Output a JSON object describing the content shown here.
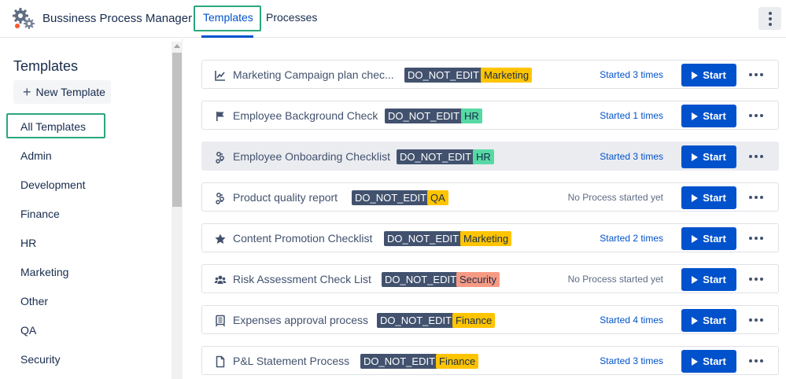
{
  "header": {
    "app_title": "Bussiness Process Manager",
    "tabs": [
      {
        "label": "Templates",
        "active": true
      },
      {
        "label": "Processes",
        "active": false
      }
    ],
    "menu_icon": "vertical-dots-icon",
    "logo_icon": "gears-icon"
  },
  "sidebar": {
    "title": "Templates",
    "new_button_label": "New Template",
    "items": [
      {
        "label": "All Templates",
        "selected": true
      },
      {
        "label": "Admin"
      },
      {
        "label": "Development"
      },
      {
        "label": "Finance"
      },
      {
        "label": "HR"
      },
      {
        "label": "Marketing"
      },
      {
        "label": "Other"
      },
      {
        "label": "QA"
      },
      {
        "label": "Security"
      }
    ]
  },
  "templates": [
    {
      "icon": "chart-line-icon",
      "name": "Marketing Campaign plan chec...",
      "tags": [
        "DO_NOT_EDIT",
        "Marketing"
      ],
      "status": "Started 3 times",
      "start_label": "Start"
    },
    {
      "icon": "flag-icon",
      "name": "Employee Background Check",
      "tags": [
        "DO_NOT_EDIT",
        "HR"
      ],
      "status": "Started 1 times",
      "start_label": "Start"
    },
    {
      "icon": "process-icon",
      "name": "Employee Onboarding Checklist",
      "tags": [
        "DO_NOT_EDIT",
        "HR"
      ],
      "status": "Started 3 times",
      "start_label": "Start"
    },
    {
      "icon": "process-icon",
      "name": "Product quality report",
      "tags": [
        "DO_NOT_EDIT",
        "QA"
      ],
      "status": "No Process started yet",
      "start_label": "Start"
    },
    {
      "icon": "star-icon",
      "name": "Content Promotion Checklist",
      "tags": [
        "DO_NOT_EDIT",
        "Marketing"
      ],
      "status": "Started 2 times",
      "start_label": "Start"
    },
    {
      "icon": "users-icon",
      "name": "Risk Assessment Check List",
      "tags": [
        "DO_NOT_EDIT",
        "Security"
      ],
      "status": "No Process started yet",
      "start_label": "Start"
    },
    {
      "icon": "building-icon",
      "name": "Expenses approval process",
      "tags": [
        "DO_NOT_EDIT",
        "Finance"
      ],
      "status": "Started 4 times",
      "start_label": "Start"
    },
    {
      "icon": "file-icon",
      "name": "P&L Statement Process",
      "tags": [
        "DO_NOT_EDIT",
        "Finance"
      ],
      "status": "Started 3 times",
      "start_label": "Start"
    }
  ],
  "colors": {
    "accent": "#0052cc",
    "highlight_box": "#2aa77f",
    "tag_do_not_edit": "#42526e",
    "tag_marketing": "#ffc400",
    "tag_hr": "#57d9a3",
    "tag_security": "#f79a83"
  }
}
